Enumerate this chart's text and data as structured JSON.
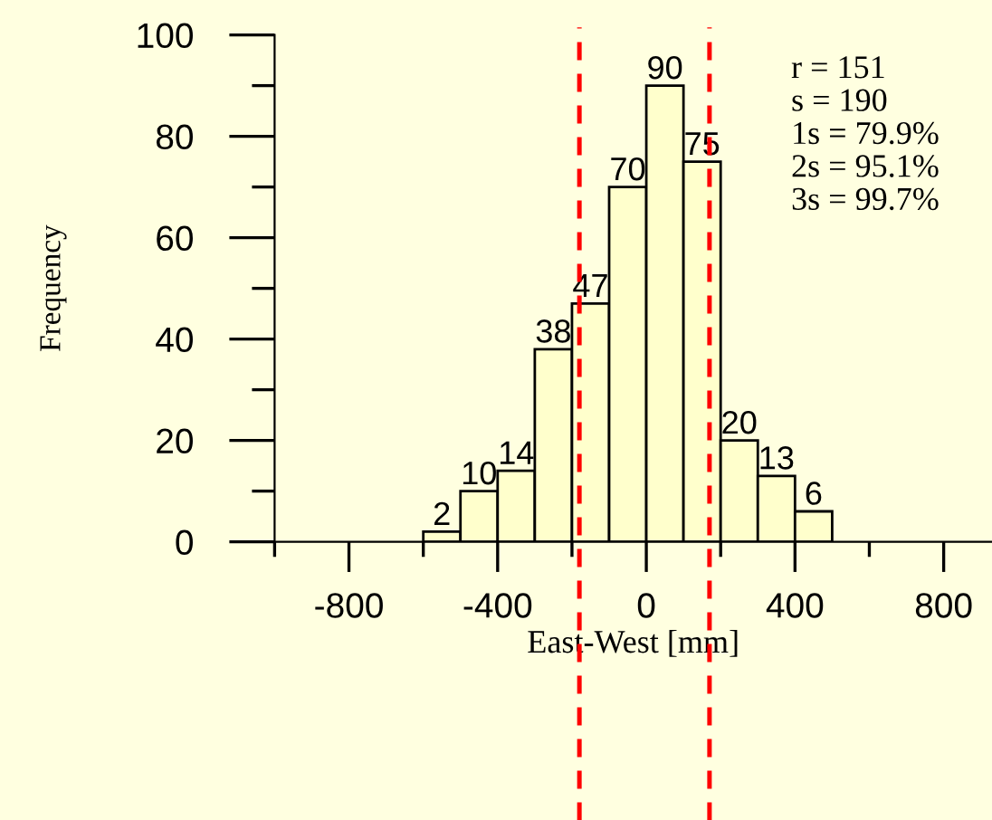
{
  "chart_data": {
    "type": "histogram",
    "xlabel": "East-West [mm]",
    "ylabel": "Frequency",
    "bins": [
      -600,
      -500,
      -400,
      -300,
      -200,
      -100,
      0,
      100,
      200,
      300,
      400,
      500
    ],
    "values": [
      2,
      10,
      14,
      38,
      47,
      70,
      90,
      75,
      20,
      13,
      6
    ],
    "color": "#ffffcc",
    "data_labels": true,
    "xlim": [
      -1000,
      930
    ],
    "xticks": [
      {
        "value": -1000,
        "label": null
      },
      -800,
      {
        "value": -600,
        "label": null
      },
      -400,
      {
        "value": -200,
        "label": null
      },
      0,
      {
        "value": 200,
        "label": null
      },
      400,
      {
        "value": 600,
        "label": null
      },
      800
    ],
    "ylim": [
      0,
      100
    ],
    "yticks": [
      0,
      {
        "value": 10,
        "label": null
      },
      20,
      {
        "value": 30,
        "label": null
      },
      40,
      {
        "value": 50,
        "label": null
      },
      60,
      {
        "value": 70,
        "label": null
      },
      80,
      {
        "value": 90,
        "label": null
      },
      100
    ],
    "ref_lines": [
      {
        "axis": "x",
        "value": -180,
        "color": "#ff0000",
        "line_style": "dashed"
      },
      {
        "axis": "x",
        "value": 170,
        "color": "#ff0000",
        "line_style": "dashed"
      }
    ],
    "annotations": [
      "r = 151",
      "s = 190",
      "1s = 79.9%",
      "2s = 95.1%",
      "3s = 99.7%"
    ],
    "grid": false,
    "legend": false
  }
}
